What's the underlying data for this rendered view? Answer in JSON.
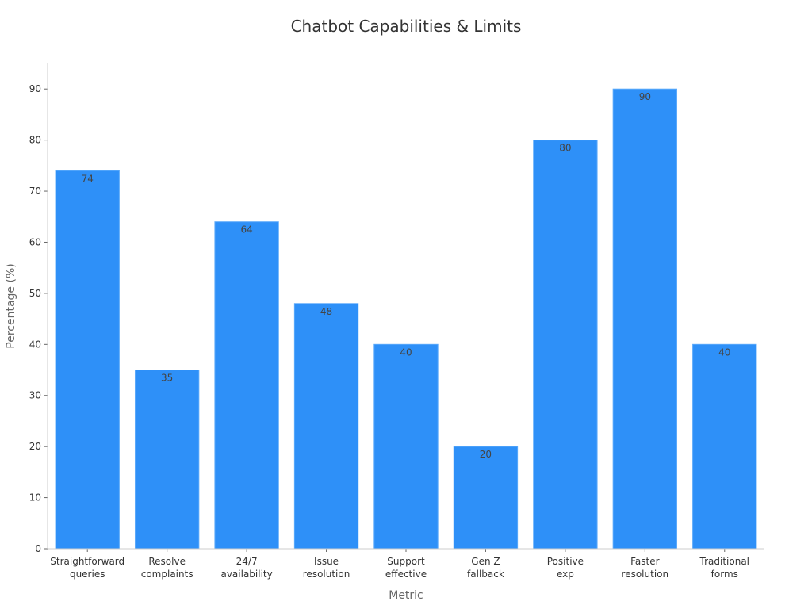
{
  "chart_data": {
    "type": "bar",
    "title": "Chatbot Capabilities & Limits",
    "xlabel": "Metric",
    "ylabel": "Percentage (%)",
    "categories": [
      [
        "Straightforward",
        "queries"
      ],
      [
        "Resolve",
        "complaints"
      ],
      [
        "24/7",
        "availability"
      ],
      [
        "Issue",
        "resolution"
      ],
      [
        "Support",
        "effective"
      ],
      [
        "Gen Z",
        "fallback"
      ],
      [
        "Positive",
        "exp"
      ],
      [
        "Faster",
        "resolution"
      ],
      [
        "Traditional",
        "forms"
      ]
    ],
    "values": [
      74,
      35,
      64,
      48,
      40,
      20,
      80,
      90,
      40
    ],
    "ylim": [
      0,
      95
    ],
    "yticks": [
      0,
      10,
      20,
      30,
      40,
      50,
      60,
      70,
      80,
      90
    ],
    "grid": false,
    "colors": {
      "bar": "#2e90f8",
      "bar_edge": "#5aa9fa"
    }
  }
}
